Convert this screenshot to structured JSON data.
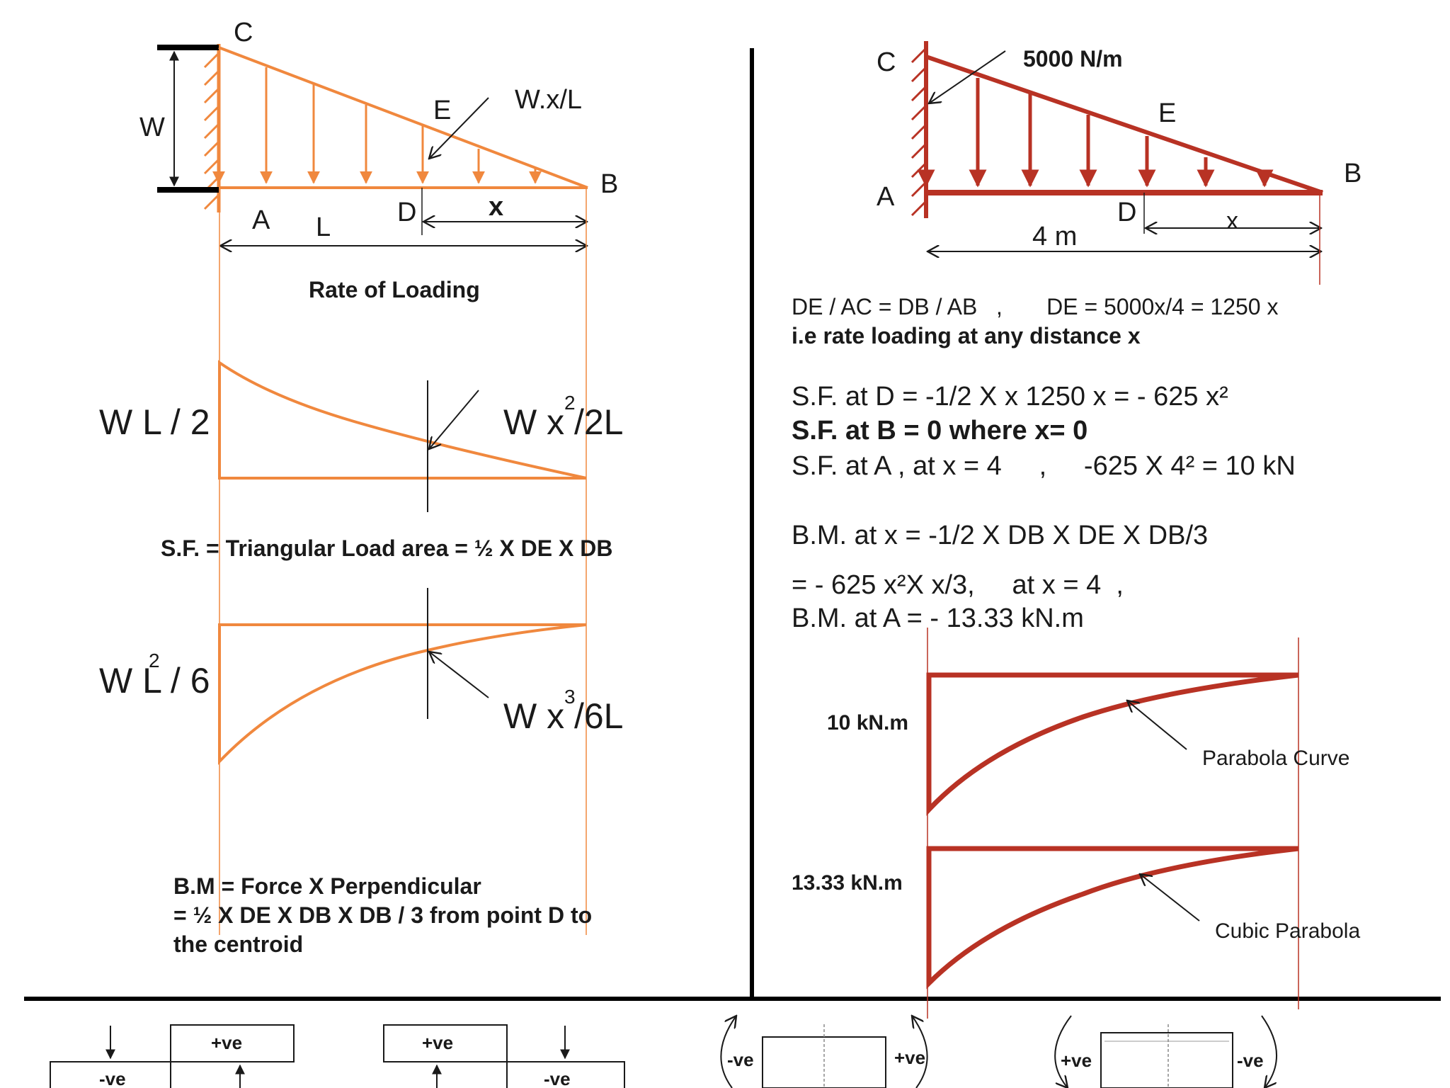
{
  "left": {
    "beam_labels": {
      "C": "C",
      "A": "A",
      "B": "B",
      "D": "D",
      "E": "E",
      "W": "W",
      "L": "L",
      "x": "x",
      "load": "W.x/L"
    },
    "rate_title": "Rate of Loading",
    "sf_left_label": "W L / 2",
    "sf_right_label": "W x /2L",
    "sf_right_sup": "2",
    "sf_formula": "S.F. = Triangular Load area = ½ X DE X DB",
    "bm_left_label": "W L / 6",
    "bm_left_sup": "2",
    "bm_right_label": "W x /6L",
    "bm_right_sup": "3",
    "bm_formula_1": "B.M = Force X Perpendicular",
    "bm_formula_2": "= ½ X DE X DB X DB / 3 from point D to",
    "bm_formula_3": "the centroid"
  },
  "right": {
    "beam_labels": {
      "C": "C",
      "A": "A",
      "B": "B",
      "D": "D",
      "E": "E",
      "x": "x",
      "load": "5000 N/m",
      "span": "4 m"
    },
    "eq1": "DE / AC = DB / AB   ,       DE = 5000x/4 = 1250 x",
    "eq2": "i.e rate loading at any distance x",
    "sf_d": "S.F. at D = -1/2 X x 1250 x = - 625 x²",
    "sf_b": "S.F. at B = 0 where x= 0",
    "sf_a": "S.F. at A , at x = 4     ,     -625 X 4² = 10 kN",
    "bm_x": "B.M. at x = -1/2 X DB X DE X DB/3",
    "bm_eq": "= - 625 x²X x/3,     at x = 4  ,",
    "bm_a": "B.M. at A = - 13.33 kN.m",
    "sfd_value": "10 kN.m",
    "sfd_curve": "Parabola Curve",
    "bmd_value": "13.33 kN.m",
    "bmd_curve": "Cubic Parabola"
  },
  "signs": {
    "sf1_neg": "-ve",
    "sf1_pos": "+ve",
    "sf2_pos": "+ve",
    "sf2_neg": "-ve",
    "bm1_neg": "-ve",
    "bm1_pos": "+ve",
    "bm2_pos": "+ve",
    "bm2_neg": "-ve"
  },
  "colors": {
    "left": "#f0883e",
    "right": "#b83224",
    "ink": "#1a1a1a"
  }
}
